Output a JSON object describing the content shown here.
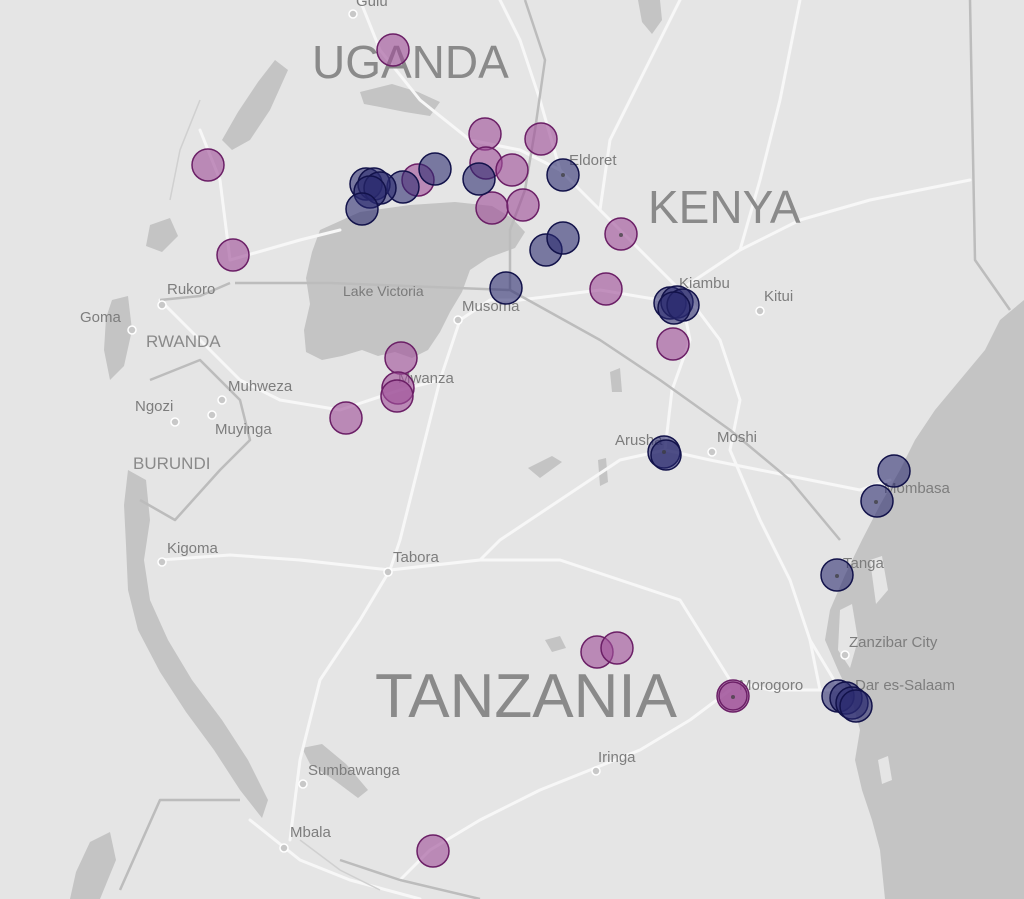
{
  "map": {
    "countries": [
      {
        "key": "uganda",
        "label": "UGANDA"
      },
      {
        "key": "kenya",
        "label": "KENYA"
      },
      {
        "key": "tanzania",
        "label": "TANZANIA"
      },
      {
        "key": "rwanda",
        "label": "RWANDA"
      },
      {
        "key": "burundi",
        "label": "BURUNDI"
      }
    ],
    "water_labels": [
      {
        "key": "lake-victoria",
        "label": "Lake Victoria"
      }
    ],
    "cities": [
      {
        "key": "gulu",
        "label": "Gulu"
      },
      {
        "key": "eldoret",
        "label": "Eldoret"
      },
      {
        "key": "kiambu",
        "label": "Kiambu"
      },
      {
        "key": "kitui",
        "label": "Kitui"
      },
      {
        "key": "rukoro",
        "label": "Rukoro"
      },
      {
        "key": "goma",
        "label": "Goma"
      },
      {
        "key": "musoma",
        "label": "Musoma"
      },
      {
        "key": "mwanza",
        "label": "Mwanza"
      },
      {
        "key": "muhweza",
        "label": "Muhweza"
      },
      {
        "key": "ngozi",
        "label": "Ngozi"
      },
      {
        "key": "muyinga",
        "label": "Muyinga"
      },
      {
        "key": "arusha",
        "label": "Arusha"
      },
      {
        "key": "moshi",
        "label": "Moshi"
      },
      {
        "key": "mombasa",
        "label": "Mombasa"
      },
      {
        "key": "tanga",
        "label": "Tanga"
      },
      {
        "key": "kigoma",
        "label": "Kigoma"
      },
      {
        "key": "tabora",
        "label": "Tabora"
      },
      {
        "key": "zanzibar",
        "label": "Zanzibar City"
      },
      {
        "key": "dar",
        "label": "Dar es-Salaam"
      },
      {
        "key": "morogoro",
        "label": "Morogoro"
      },
      {
        "key": "iringa",
        "label": "Iringa"
      },
      {
        "key": "sumbawanga",
        "label": "Sumbawanga"
      },
      {
        "key": "mbala",
        "label": "Mbala"
      }
    ],
    "colors": {
      "background": "#e5e5e5",
      "water": "#c4c4c4",
      "roads": "#f7f7f7",
      "borders": "#bdbdbd",
      "marker_purple": "#a0509a",
      "marker_navy": "#2a2a6e"
    }
  }
}
